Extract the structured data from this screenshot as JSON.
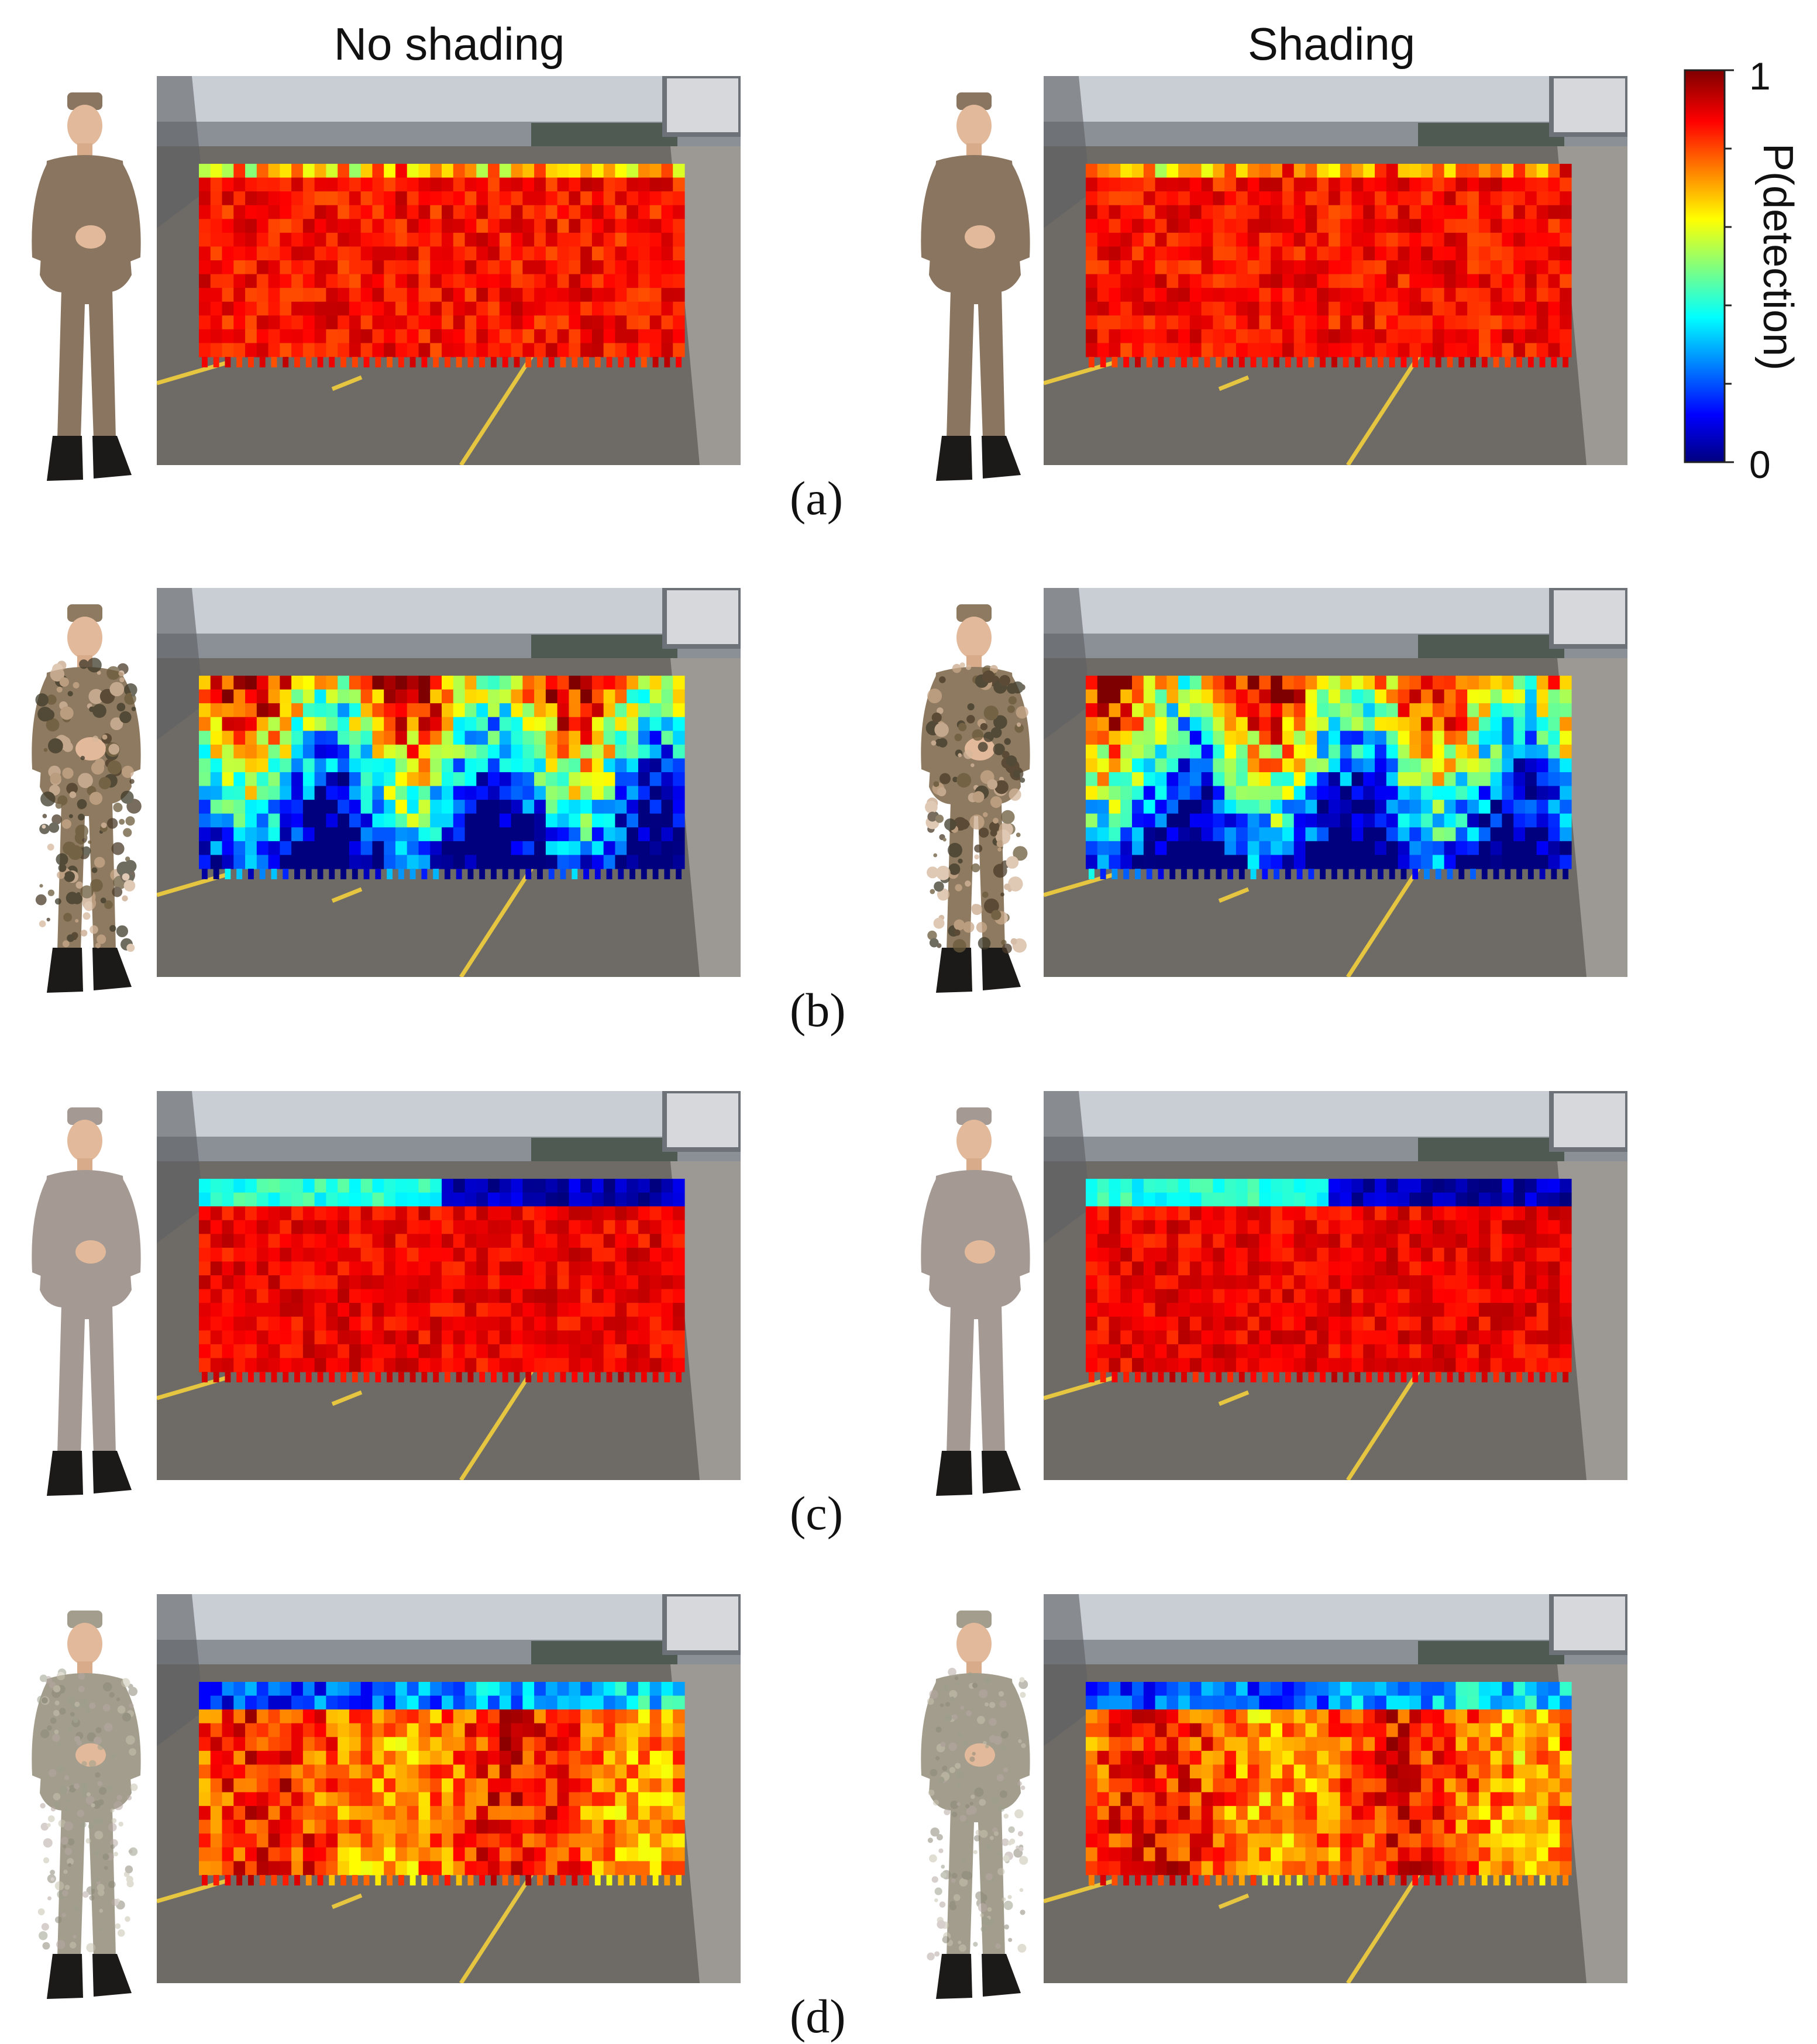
{
  "figure": {
    "columns": [
      {
        "key": "no_shading",
        "label": "No shading"
      },
      {
        "key": "shading",
        "label": "Shading"
      }
    ],
    "colorbar": {
      "title": "P(detection)",
      "max_label": "1",
      "min_label": "0",
      "colormap": "jet",
      "colors": [
        "#00007f",
        "#0000ff",
        "#00ffff",
        "#ffff00",
        "#ff0000",
        "#7f0000"
      ]
    },
    "panels": [
      {
        "label": "(a)",
        "uniform_color": "#8a7560",
        "pattern": "plain"
      },
      {
        "label": "(b)",
        "uniform_color": "#8e7a60",
        "pattern": "camo"
      },
      {
        "label": "(c)",
        "uniform_color": "#a59a93",
        "pattern": "plain"
      },
      {
        "label": "(d)",
        "uniform_color": "#a39d8d",
        "pattern": "speckle"
      }
    ]
  },
  "chart_data": {
    "type": "heatmap",
    "layout": "4x2 grid",
    "columns": [
      "No shading",
      "Shading"
    ],
    "rows": [
      "(a)",
      "(b)",
      "(c)",
      "(d)"
    ],
    "value_range": [
      0,
      1
    ],
    "colorbar_label": "P(detection)"
  }
}
